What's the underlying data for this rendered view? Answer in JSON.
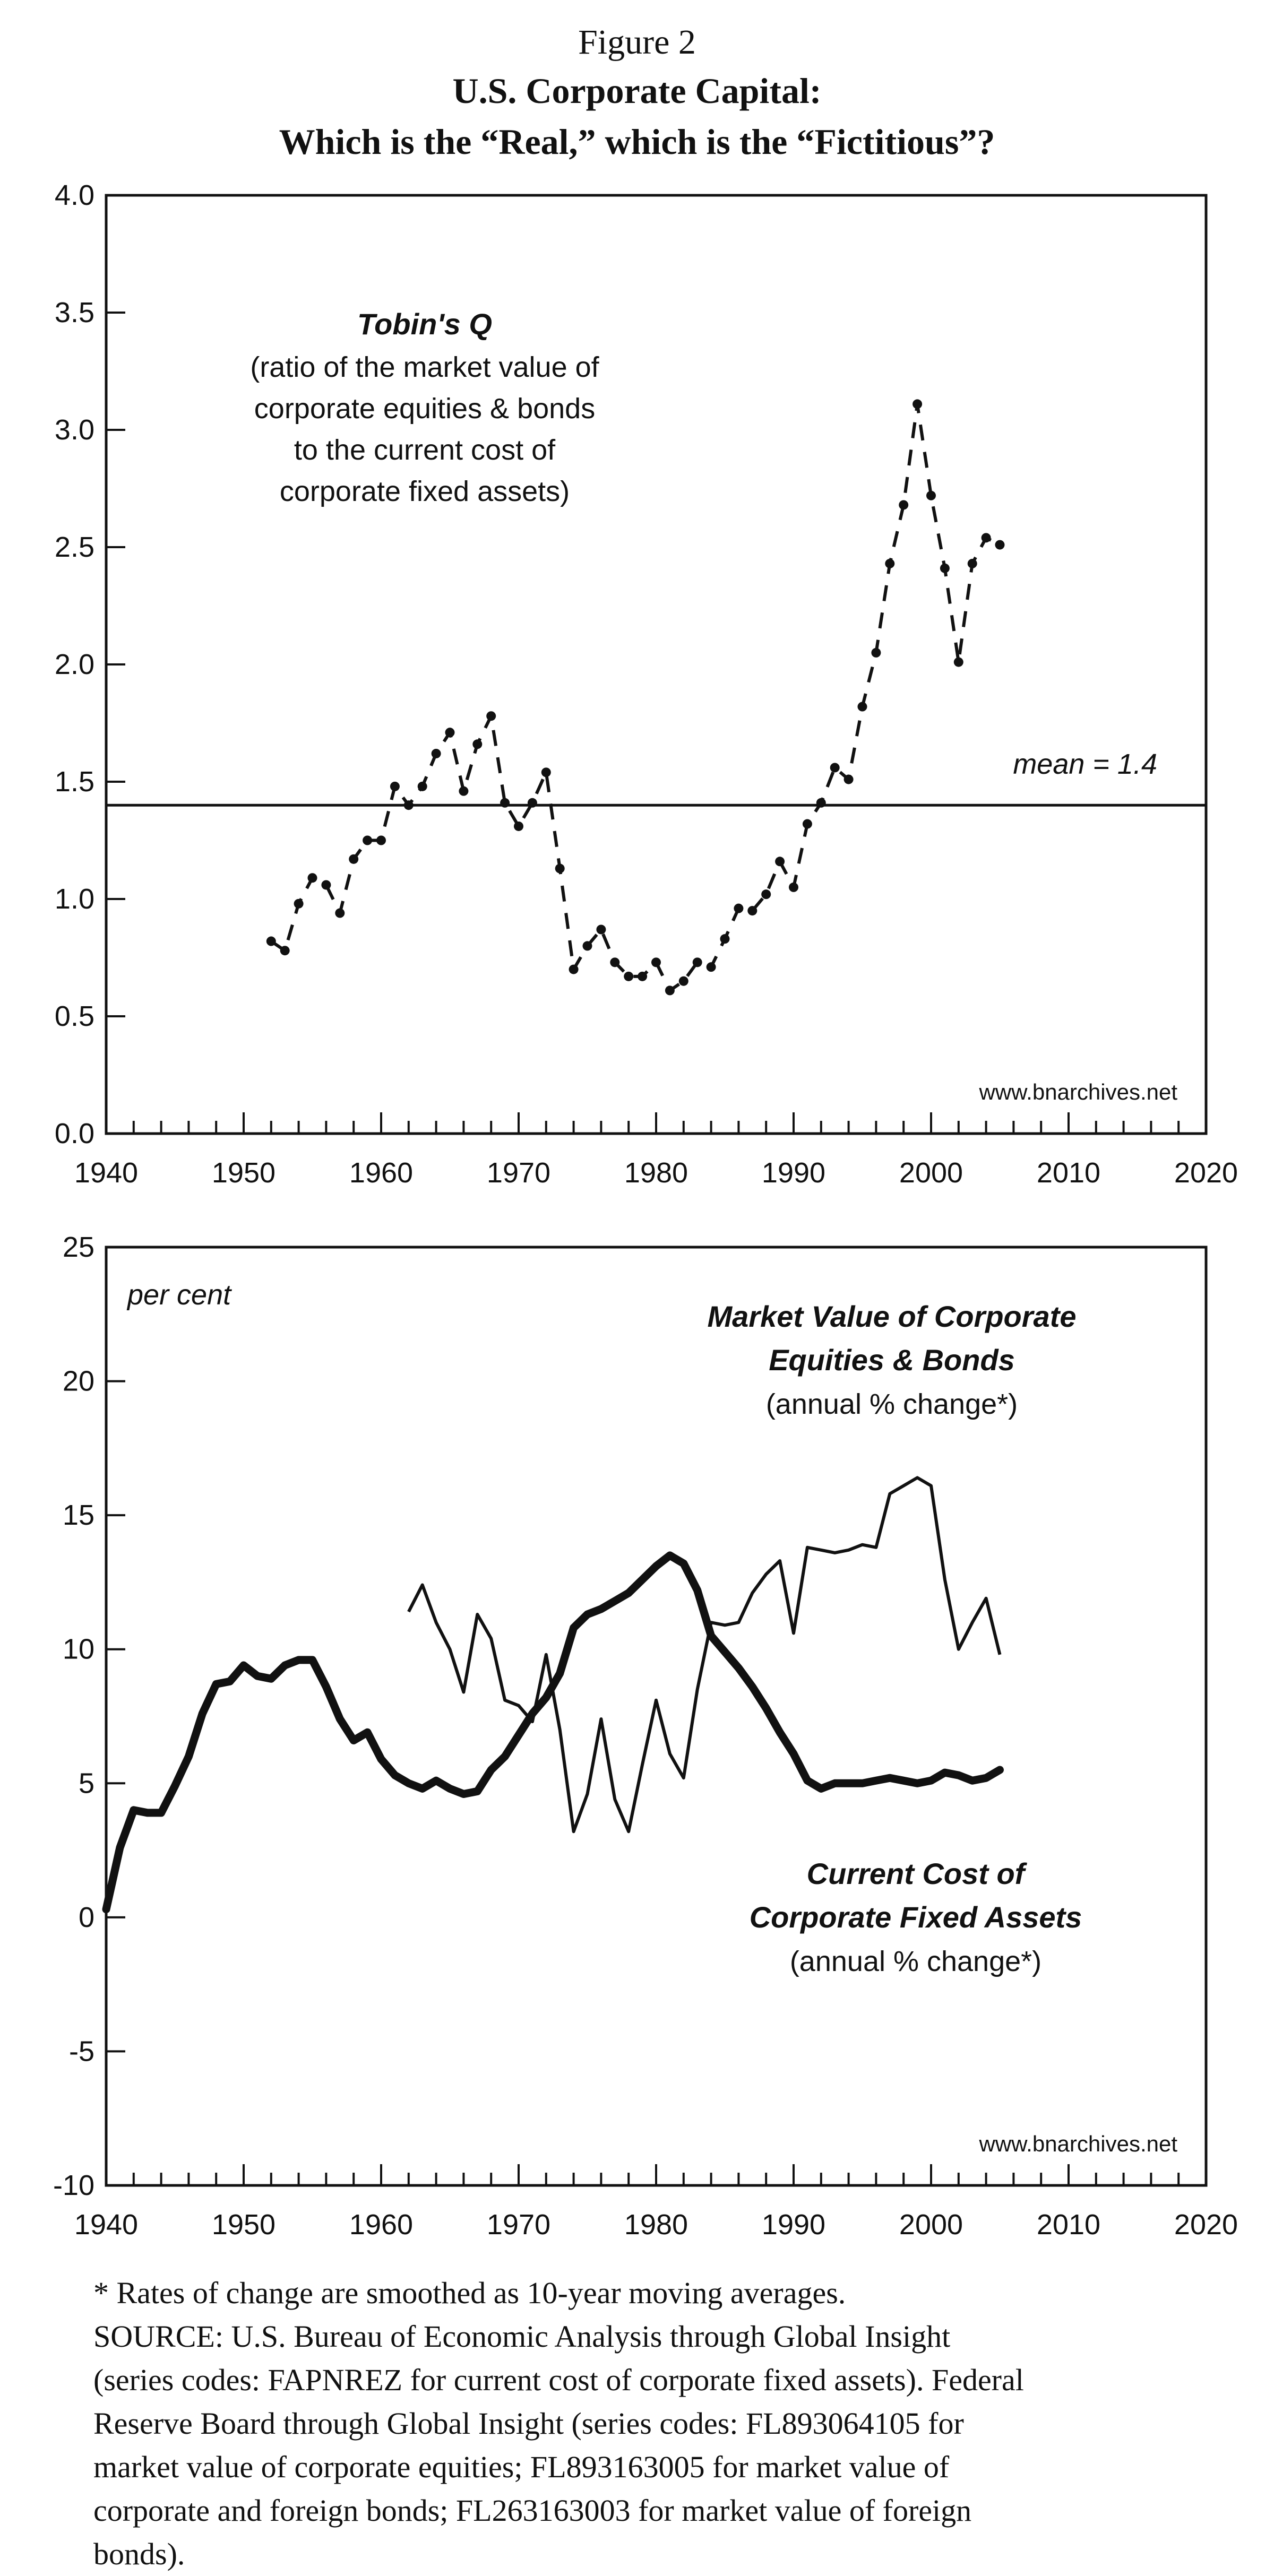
{
  "header": {
    "figure_label": "Figure 2",
    "title_line1": "U.S. Corporate Capital:",
    "title_line2": "Which is the “Real,” which is the “Fictitious”?"
  },
  "chart_data": [
    {
      "type": "scatter",
      "xlim": [
        1940,
        2020
      ],
      "ylim": [
        0.0,
        4.0
      ],
      "xticks": [
        "1940",
        "1950",
        "1960",
        "1970",
        "1980",
        "1990",
        "2000",
        "2010",
        "2020"
      ],
      "yticks": [
        "0.0",
        "0.5",
        "1.0",
        "1.5",
        "2.0",
        "2.5",
        "3.0",
        "3.5",
        "4.0"
      ],
      "grid": false,
      "annotation_title": "Tobin's Q",
      "annotation_lines": [
        "(ratio of the market value of",
        "corporate equities & bonds",
        "to the current cost of",
        "corporate fixed assets)"
      ],
      "mean_label": "mean = 1.4",
      "mean_value": 1.4,
      "source_note": "www.bnarchives.net",
      "series": [
        {
          "style": "dotted-line-with-markers",
          "x": [
            1952,
            1953,
            1954,
            1955,
            1956,
            1957,
            1958,
            1959,
            1960,
            1961,
            1962,
            1963,
            1964,
            1965,
            1966,
            1967,
            1968,
            1969,
            1970,
            1971,
            1972,
            1973,
            1974,
            1975,
            1976,
            1977,
            1978,
            1979,
            1980,
            1981,
            1982,
            1983,
            1984,
            1985,
            1986,
            1987,
            1988,
            1989,
            1990,
            1991,
            1992,
            1993,
            1994,
            1995,
            1996,
            1997,
            1998,
            1999,
            2000,
            2001,
            2002,
            2003,
            2004,
            2005
          ],
          "y": [
            0.82,
            0.78,
            0.98,
            1.09,
            1.06,
            0.94,
            1.17,
            1.25,
            1.25,
            1.48,
            1.4,
            1.48,
            1.62,
            1.71,
            1.46,
            1.66,
            1.78,
            1.41,
            1.31,
            1.41,
            1.54,
            1.13,
            0.7,
            0.8,
            0.87,
            0.73,
            0.67,
            0.67,
            0.73,
            0.61,
            0.65,
            0.73,
            0.71,
            0.83,
            0.96,
            0.95,
            1.02,
            1.16,
            1.05,
            1.32,
            1.41,
            1.56,
            1.51,
            1.82,
            2.05,
            2.43,
            2.68,
            3.11,
            2.72,
            2.41,
            2.01,
            2.43,
            2.54,
            2.51
          ]
        }
      ]
    },
    {
      "type": "line",
      "xlim": [
        1940,
        2020
      ],
      "ylim": [
        -10,
        25
      ],
      "xticks": [
        "1940",
        "1950",
        "1960",
        "1970",
        "1980",
        "1990",
        "2000",
        "2010",
        "2020"
      ],
      "yticks": [
        "-10",
        "-5",
        "0",
        "5",
        "10",
        "15",
        "20",
        "25"
      ],
      "grid": false,
      "ylabel": "per cent",
      "source_note": "www.bnarchives.net",
      "series": [
        {
          "name": "Market Value of Corporate Equities & Bonds",
          "name_line1": "Market Value of Corporate",
          "name_line2": "Equities & Bonds",
          "sub": "(annual % change*)",
          "style": "thin",
          "x": [
            1962,
            1963,
            1964,
            1965,
            1966,
            1967,
            1968,
            1969,
            1970,
            1971,
            1972,
            1973,
            1974,
            1975,
            1976,
            1977,
            1978,
            1979,
            1980,
            1981,
            1982,
            1983,
            1984,
            1985,
            1986,
            1987,
            1988,
            1989,
            1990,
            1991,
            1992,
            1993,
            1994,
            1995,
            1996,
            1997,
            1998,
            1999,
            2000,
            2001,
            2002,
            2003,
            2004,
            2005
          ],
          "y": [
            11.4,
            12.4,
            11.0,
            10.0,
            8.4,
            11.3,
            10.4,
            8.1,
            7.9,
            7.3,
            9.8,
            7.0,
            3.2,
            4.6,
            7.4,
            4.4,
            3.2,
            5.7,
            8.1,
            6.1,
            5.2,
            8.5,
            11.0,
            10.9,
            11.0,
            12.1,
            12.8,
            13.3,
            10.6,
            13.8,
            13.7,
            13.6,
            13.7,
            13.9,
            13.8,
            15.8,
            16.1,
            16.4,
            16.1,
            12.6,
            10.0,
            11.0,
            11.9,
            9.8
          ]
        },
        {
          "name": "Current Cost of Corporate Fixed Assets",
          "name_line1": "Current Cost of",
          "name_line2": "Corporate Fixed Assets",
          "sub": "(annual % change*)",
          "style": "thick",
          "x": [
            1940,
            1941,
            1942,
            1943,
            1944,
            1945,
            1946,
            1947,
            1948,
            1949,
            1950,
            1951,
            1952,
            1953,
            1954,
            1955,
            1956,
            1957,
            1958,
            1959,
            1960,
            1961,
            1962,
            1963,
            1964,
            1965,
            1966,
            1967,
            1968,
            1969,
            1970,
            1971,
            1972,
            1973,
            1974,
            1975,
            1976,
            1977,
            1978,
            1979,
            1980,
            1981,
            1982,
            1983,
            1984,
            1985,
            1986,
            1987,
            1988,
            1989,
            1990,
            1991,
            1992,
            1993,
            1994,
            1995,
            1996,
            1997,
            1998,
            1999,
            2000,
            2001,
            2002,
            2003,
            2004,
            2005
          ],
          "y": [
            0.3,
            2.6,
            4.0,
            3.9,
            3.9,
            4.9,
            6.0,
            7.6,
            8.7,
            8.8,
            9.4,
            9.0,
            8.9,
            9.4,
            9.6,
            9.6,
            8.6,
            7.4,
            6.6,
            6.9,
            5.9,
            5.3,
            5.0,
            4.8,
            5.1,
            4.8,
            4.6,
            4.7,
            5.5,
            6.0,
            6.8,
            7.6,
            8.2,
            9.1,
            10.8,
            11.3,
            11.5,
            11.8,
            12.1,
            12.6,
            13.1,
            13.5,
            13.2,
            12.2,
            10.5,
            9.9,
            9.3,
            8.6,
            7.8,
            6.9,
            6.1,
            5.1,
            4.8,
            5.0,
            5.0,
            5.0,
            5.1,
            5.2,
            5.1,
            5.0,
            5.1,
            5.4,
            5.3,
            5.1,
            5.2,
            5.5
          ]
        }
      ]
    }
  ],
  "footnote": {
    "line1": "* Rates of change are smoothed as 10-year moving averages.",
    "line2": "SOURCE: U.S. Bureau of Economic Analysis through Global Insight",
    "line3": "(series codes: FAPNREZ for current cost of corporate fixed assets). Federal",
    "line4": "Reserve Board through Global Insight (series codes: FL893064105 for",
    "line5": "market value of corporate equities; FL893163005 for market value of",
    "line6": "corporate and foreign bonds; FL263163003 for market value of foreign",
    "line7": "bonds)."
  }
}
